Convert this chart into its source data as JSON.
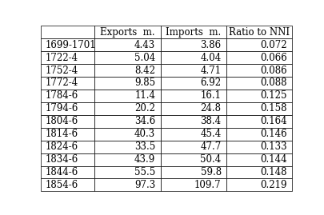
{
  "columns": [
    "",
    "Exports  m.",
    "Imports  m.",
    "Ratio to NNI"
  ],
  "rows": [
    [
      "1699-1701",
      "4.43",
      "3.86",
      "0.072"
    ],
    [
      "1722-4",
      "5.04",
      "4.04",
      "0.066"
    ],
    [
      "1752-4",
      "8.42",
      "4.71",
      "0.086"
    ],
    [
      "1772-4",
      "9.85",
      "6.92",
      "0.088"
    ],
    [
      "1784-6",
      "11.4",
      "16.1",
      "0.125"
    ],
    [
      "1794-6",
      "20.2",
      "24.8",
      "0.158"
    ],
    [
      "1804-6",
      "34.6",
      "38.4",
      "0.164"
    ],
    [
      "1814-6",
      "40.3",
      "45.4",
      "0.146"
    ],
    [
      "1824-6",
      "33.5",
      "47.7",
      "0.133"
    ],
    [
      "1834-6",
      "43.9",
      "50.4",
      "0.144"
    ],
    [
      "1844-6",
      "55.5",
      "59.8",
      "0.148"
    ],
    [
      "1854-6",
      "97.3",
      "109.7",
      "0.219"
    ]
  ],
  "background_color": "#ffffff",
  "line_color": "#000000",
  "font_size": 8.5,
  "figwidth": 4.06,
  "figheight": 2.69,
  "dpi": 100
}
